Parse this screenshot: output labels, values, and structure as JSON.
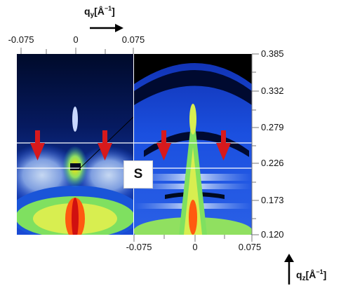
{
  "qy_axis": {
    "label_main": "q",
    "label_sub": "y",
    "label_units": "[Å",
    "label_sup": "−1",
    "label_close": "]",
    "ticks": [
      "-0.075",
      "0",
      "0.075"
    ]
  },
  "qz_axis": {
    "label_main": "q",
    "label_sub": "z",
    "label_units": "[Å",
    "label_sup": "−1",
    "label_close": "]",
    "ticks": [
      "0.385",
      "0.332",
      "0.279",
      "0.226",
      "0.173",
      "0.120"
    ]
  },
  "bottom_axis": {
    "ticks": [
      "-0.075",
      "0",
      "0.075"
    ]
  },
  "panel_marker": "S",
  "colors": {
    "arrow": "#d7191c",
    "pattern_high": "#ffe000",
    "pattern_mid": "#7fe060",
    "pattern_low": "#1a4bd6",
    "background_dark": "#000a2a"
  }
}
